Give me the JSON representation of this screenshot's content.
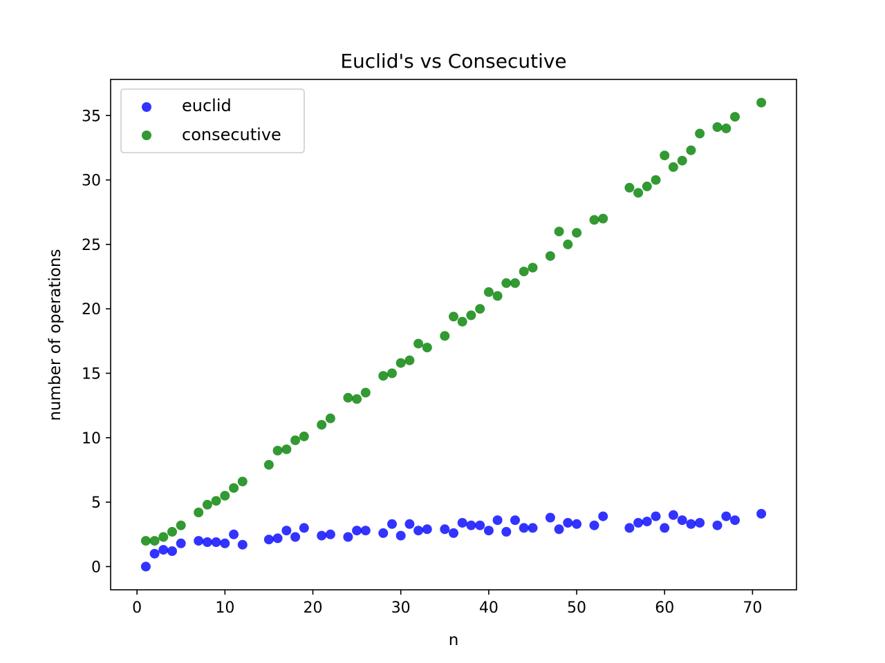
{
  "chart_data": {
    "type": "scatter",
    "title": "Euclid's vs Consecutive",
    "xlabel": "n",
    "ylabel": "number of operations",
    "xlim": [
      -3,
      75
    ],
    "ylim": [
      -1.8,
      37.8
    ],
    "xticks": [
      0,
      10,
      20,
      30,
      40,
      50,
      60,
      70
    ],
    "yticks": [
      0,
      5,
      10,
      15,
      20,
      25,
      30,
      35
    ],
    "grid": false,
    "legend_position": "top-left",
    "series": [
      {
        "name": "euclid",
        "color": "#0000ff",
        "points": [
          [
            1,
            0
          ],
          [
            2,
            1
          ],
          [
            3,
            1.3
          ],
          [
            4,
            1.2
          ],
          [
            5,
            1.8
          ],
          [
            7,
            2
          ],
          [
            8,
            1.9
          ],
          [
            9,
            1.9
          ],
          [
            10,
            1.8
          ],
          [
            11,
            2.5
          ],
          [
            12,
            1.7
          ],
          [
            15,
            2.1
          ],
          [
            16,
            2.2
          ],
          [
            17,
            2.8
          ],
          [
            18,
            2.3
          ],
          [
            19,
            3
          ],
          [
            21,
            2.4
          ],
          [
            22,
            2.5
          ],
          [
            24,
            2.3
          ],
          [
            25,
            2.8
          ],
          [
            26,
            2.8
          ],
          [
            28,
            2.6
          ],
          [
            29,
            3.3
          ],
          [
            30,
            2.4
          ],
          [
            31,
            3.3
          ],
          [
            32,
            2.8
          ],
          [
            33,
            2.9
          ],
          [
            35,
            2.9
          ],
          [
            36,
            2.6
          ],
          [
            37,
            3.4
          ],
          [
            38,
            3.2
          ],
          [
            39,
            3.2
          ],
          [
            40,
            2.8
          ],
          [
            41,
            3.6
          ],
          [
            42,
            2.7
          ],
          [
            43,
            3.6
          ],
          [
            44,
            3
          ],
          [
            45,
            3
          ],
          [
            47,
            3.8
          ],
          [
            48,
            2.9
          ],
          [
            49,
            3.4
          ],
          [
            50,
            3.3
          ],
          [
            52,
            3.2
          ],
          [
            53,
            3.9
          ],
          [
            56,
            3
          ],
          [
            57,
            3.4
          ],
          [
            58,
            3.5
          ],
          [
            59,
            3.9
          ],
          [
            60,
            3
          ],
          [
            61,
            4
          ],
          [
            62,
            3.6
          ],
          [
            63,
            3.3
          ],
          [
            64,
            3.4
          ],
          [
            66,
            3.2
          ],
          [
            67,
            3.9
          ],
          [
            68,
            3.6
          ],
          [
            71,
            4.1
          ]
        ]
      },
      {
        "name": "consecutive",
        "color": "#008000",
        "points": [
          [
            1,
            2
          ],
          [
            2,
            2
          ],
          [
            3,
            2.3
          ],
          [
            4,
            2.7
          ],
          [
            5,
            3.2
          ],
          [
            7,
            4.2
          ],
          [
            8,
            4.8
          ],
          [
            9,
            5.1
          ],
          [
            10,
            5.5
          ],
          [
            11,
            6.1
          ],
          [
            12,
            6.6
          ],
          [
            15,
            7.9
          ],
          [
            16,
            9
          ],
          [
            17,
            9.1
          ],
          [
            18,
            9.8
          ],
          [
            19,
            10.1
          ],
          [
            21,
            11
          ],
          [
            22,
            11.5
          ],
          [
            24,
            13.1
          ],
          [
            25,
            13
          ],
          [
            26,
            13.5
          ],
          [
            28,
            14.8
          ],
          [
            29,
            15
          ],
          [
            30,
            15.8
          ],
          [
            31,
            16
          ],
          [
            32,
            17.3
          ],
          [
            33,
            17
          ],
          [
            35,
            17.9
          ],
          [
            36,
            19.4
          ],
          [
            37,
            19
          ],
          [
            38,
            19.5
          ],
          [
            39,
            20
          ],
          [
            40,
            21.3
          ],
          [
            41,
            21
          ],
          [
            42,
            22
          ],
          [
            43,
            22
          ],
          [
            44,
            22.9
          ],
          [
            45,
            23.2
          ],
          [
            47,
            24.1
          ],
          [
            48,
            26
          ],
          [
            49,
            25
          ],
          [
            50,
            25.9
          ],
          [
            52,
            26.9
          ],
          [
            53,
            27
          ],
          [
            56,
            29.4
          ],
          [
            57,
            29
          ],
          [
            58,
            29.5
          ],
          [
            59,
            30
          ],
          [
            60,
            31.9
          ],
          [
            61,
            31
          ],
          [
            62,
            31.5
          ],
          [
            63,
            32.3
          ],
          [
            64,
            33.6
          ],
          [
            66,
            34.1
          ],
          [
            67,
            34
          ],
          [
            68,
            34.9
          ],
          [
            71,
            36
          ]
        ]
      }
    ]
  }
}
